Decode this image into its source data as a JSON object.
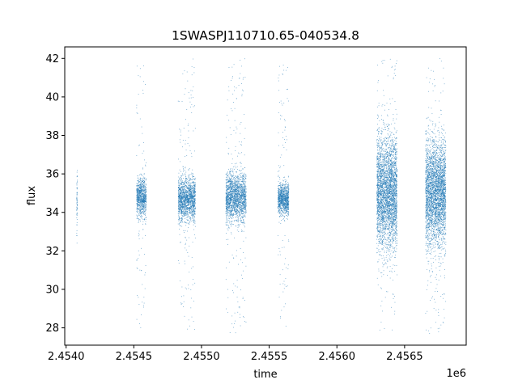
{
  "chart_data": {
    "type": "scatter",
    "title": "1SWASPJ110710.65-040534.8",
    "xlabel": "time",
    "ylabel": "flux",
    "x_offset_label": "1e6",
    "xlim": [
      2453990,
      2456955
    ],
    "ylim": [
      27.1,
      42.6
    ],
    "x_ticks": [
      2454000,
      2454500,
      2455000,
      2455500,
      2456000,
      2456500
    ],
    "x_tick_labels": [
      "2.4540",
      "2.4545",
      "2.4550",
      "2.4555",
      "2.4560",
      "2.4565"
    ],
    "y_ticks": [
      28,
      30,
      32,
      34,
      36,
      38,
      40,
      42
    ],
    "y_tick_labels": [
      "28",
      "30",
      "32",
      "34",
      "36",
      "38",
      "40",
      "42"
    ],
    "grid": false,
    "marker_color": "#1f77b4",
    "season_clusters": [
      {
        "x_start": 2454078,
        "x_end": 2454083,
        "y_center": 34.5,
        "y_spread": 1.2,
        "y_min": 32.3,
        "y_max": 36.5
      },
      {
        "x_start": 2454520,
        "x_end": 2454592,
        "y_center": 34.8,
        "y_spread": 0.7,
        "y_min": 28.0,
        "y_max": 42.0
      },
      {
        "x_start": 2454828,
        "x_end": 2454955,
        "y_center": 34.7,
        "y_spread": 0.8,
        "y_min": 27.8,
        "y_max": 42.0
      },
      {
        "x_start": 2455180,
        "x_end": 2455330,
        "y_center": 34.8,
        "y_spread": 0.9,
        "y_min": 27.7,
        "y_max": 42.0
      },
      {
        "x_start": 2455565,
        "x_end": 2455645,
        "y_center": 34.7,
        "y_spread": 0.6,
        "y_min": 28.0,
        "y_max": 41.8
      },
      {
        "x_start": 2456295,
        "x_end": 2456445,
        "y_center": 35.0,
        "y_spread": 2.0,
        "y_min": 27.7,
        "y_max": 42.0
      },
      {
        "x_start": 2456655,
        "x_end": 2456805,
        "y_center": 35.0,
        "y_spread": 1.9,
        "y_min": 27.7,
        "y_max": 42.0
      }
    ]
  }
}
